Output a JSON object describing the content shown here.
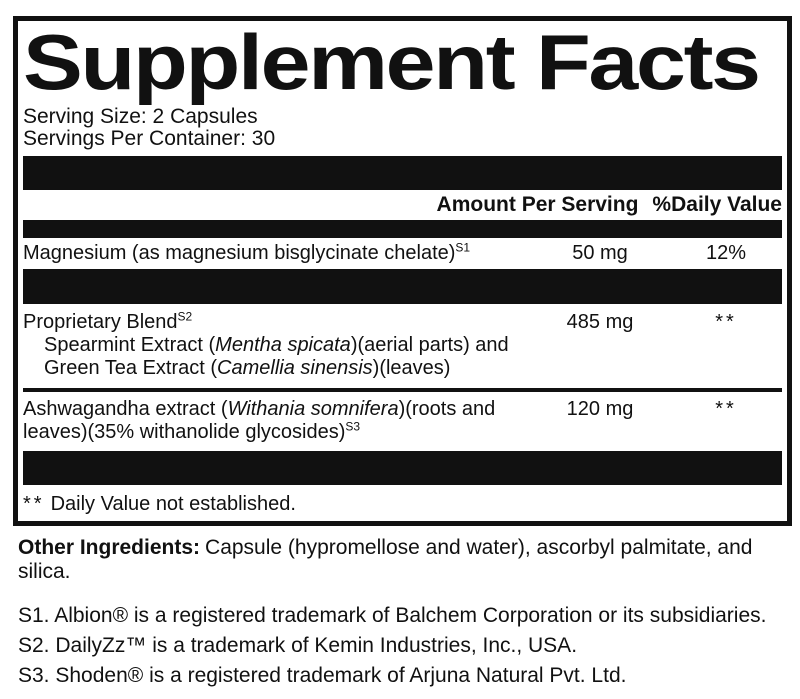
{
  "panel": {
    "title": "Supplement Facts",
    "serving_size": "Serving Size: 2 Capsules",
    "servings_per_container": "Servings Per Container: 30",
    "column_headers": {
      "amount": "Amount Per Serving",
      "daily_value": "%Daily Value"
    },
    "rows": {
      "magnesium": {
        "name": "Magnesium (as magnesium bisglycinate chelate)",
        "footnote_ref": "S1",
        "amount": "50 mg",
        "daily_value": "12%"
      },
      "proprietary_blend": {
        "name": "Proprietary Blend",
        "footnote_ref": "S2",
        "amount": "485 mg",
        "daily_value": "**",
        "sub_ingredients": {
          "spearmint": {
            "pre": "Spearmint Extract (",
            "species": "Mentha spicata",
            "post": ")(aerial parts) and"
          },
          "green_tea": {
            "pre": "Green Tea Extract (",
            "species": "Camellia sinensis",
            "post": ")(leaves)"
          }
        }
      },
      "ashwagandha": {
        "pre": "Ashwagandha extract (",
        "species": "Withania somnifera",
        "post": ")(roots and leaves)(35% withanolide glycosides)",
        "footnote_ref": "S3",
        "amount": "120 mg",
        "daily_value": "**"
      }
    },
    "footnote": {
      "marker": "**",
      "text": "Daily Value not established."
    }
  },
  "other_ingredients": {
    "label": "Other Ingredients:",
    "text": "Capsule (hypromellose and water), ascorbyl palmitate, and silica."
  },
  "trademark_notes": [
    "S1. Albion® is a registered trademark of Balchem Corporation or its subsidiaries.",
    "S2. DailyZz™ is a trademark of Kemin Industries, Inc., USA.",
    "S3. Shoden® is a registered trademark of Arjuna Natural Pvt. Ltd."
  ],
  "colors": {
    "ink": "#111111",
    "background": "#ffffff"
  }
}
